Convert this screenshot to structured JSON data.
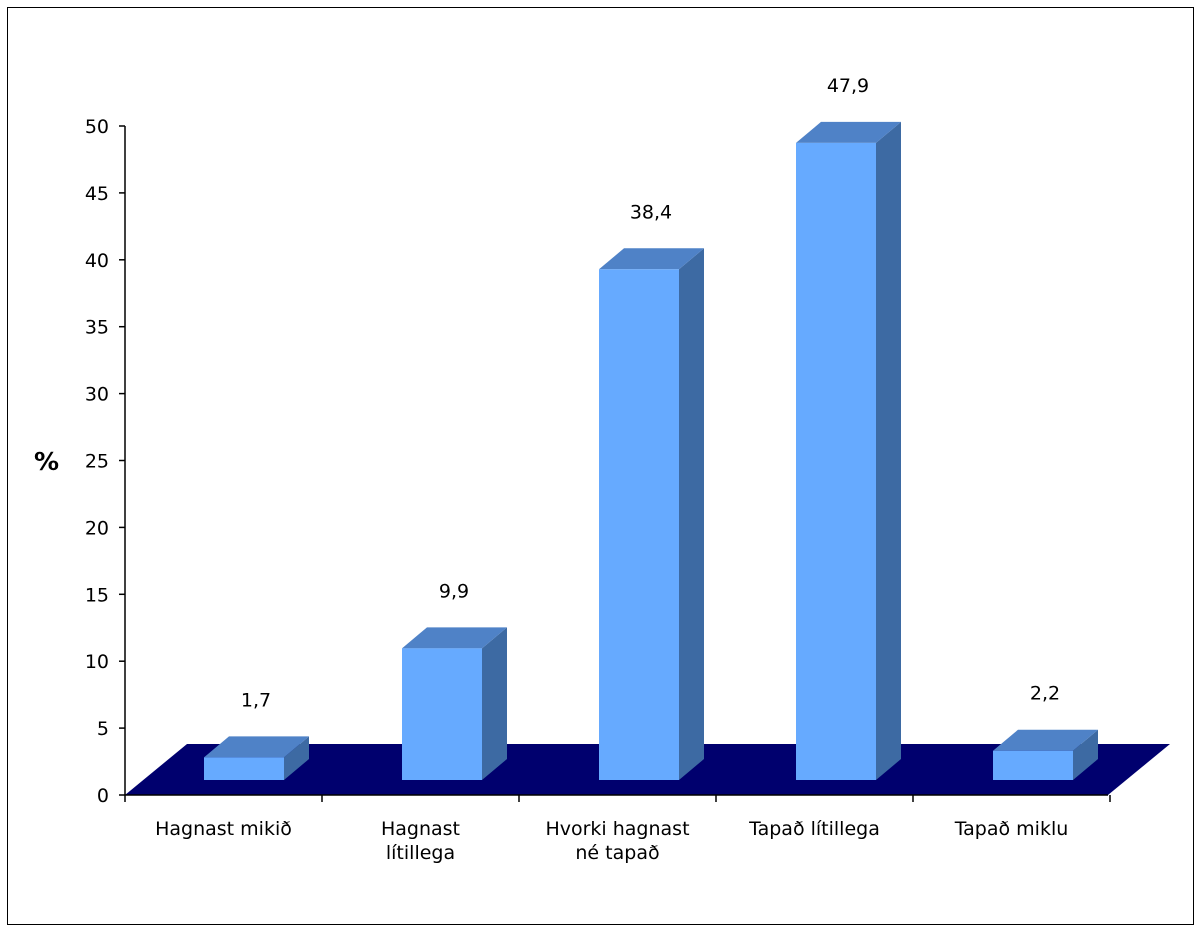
{
  "chart_data": {
    "type": "bar",
    "categories": [
      [
        "Hagnast mikið"
      ],
      [
        "Hagnast",
        "lítillega"
      ],
      [
        "Hvorki hagnast",
        "né tapað"
      ],
      [
        "Tapað lítillega"
      ],
      [
        "Tapað miklu"
      ]
    ],
    "values": [
      1.7,
      9.9,
      38.4,
      47.9,
      2.2
    ],
    "data_labels": [
      "1,7",
      "9,9",
      "38,4",
      "47,9",
      "2,2"
    ],
    "ylabel": "%",
    "ylim": [
      0,
      50
    ],
    "yticks": [
      0,
      5,
      10,
      15,
      20,
      25,
      30,
      35,
      40,
      45,
      50
    ],
    "grid": false,
    "legend": "none",
    "colors": {
      "bar_front": "#66aaff",
      "bar_top": "#4f82c7",
      "bar_side": "#3d6aa3",
      "floor": "#00006e",
      "axis": "#000000"
    }
  }
}
